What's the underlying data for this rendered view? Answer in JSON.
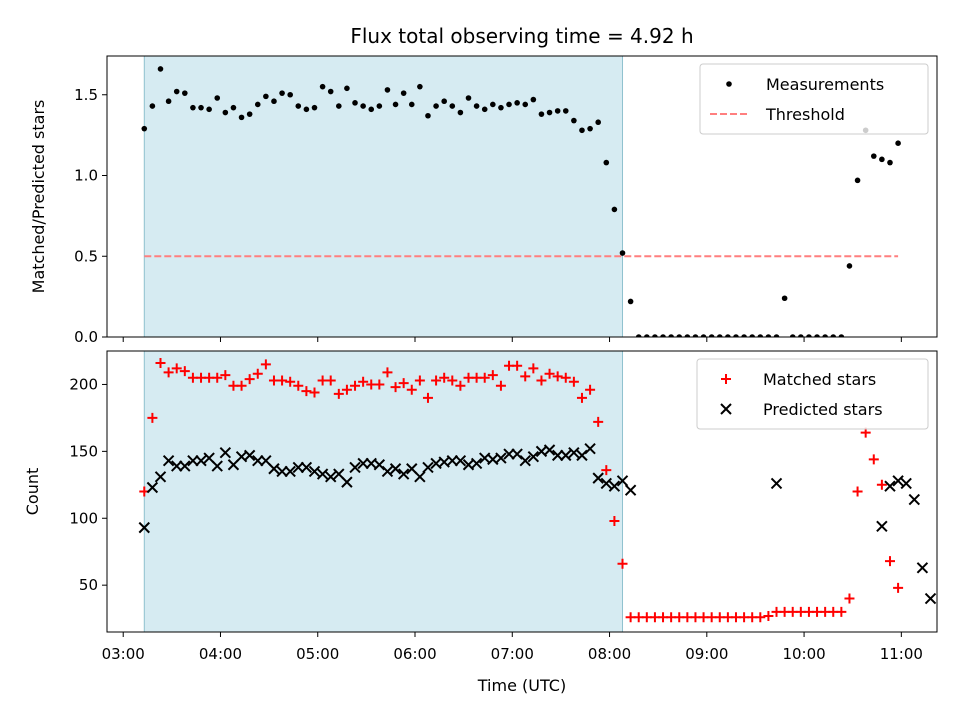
{
  "figure": {
    "title": "Flux total observing time = 4.92 h",
    "xlabel": "Time (UTC)"
  },
  "chart_data": [
    {
      "type": "scatter",
      "title": "Flux total observing time = 4.92 h",
      "xlabel": "",
      "ylabel": "Matched/Predicted stars",
      "xlim": [
        "02:50",
        "11:22"
      ],
      "ylim": [
        0,
        1.74
      ],
      "shaded_region": [
        "03:13",
        "08:08"
      ],
      "yticks": [
        "0.0",
        "0.5",
        "1.0",
        "1.5"
      ],
      "legend": [
        "Measurements",
        "Threshold"
      ],
      "legend_position": "top-right",
      "grid": false,
      "threshold": {
        "name": "Threshold",
        "y": 0.5,
        "x": [
          "03:13",
          "10:58"
        ],
        "color": "#ff7f7f",
        "style": "dashed"
      },
      "series": [
        {
          "name": "Measurements",
          "marker": "dot",
          "color": "#000000",
          "x": [
            "03:13",
            "03:18",
            "03:23",
            "03:28",
            "03:33",
            "03:38",
            "03:43",
            "03:48",
            "03:53",
            "03:58",
            "04:03",
            "04:08",
            "04:13",
            "04:18",
            "04:23",
            "04:28",
            "04:33",
            "04:38",
            "04:43",
            "04:48",
            "04:53",
            "04:58",
            "05:03",
            "05:08",
            "05:13",
            "05:18",
            "05:23",
            "05:28",
            "05:33",
            "05:38",
            "05:43",
            "05:48",
            "05:53",
            "05:58",
            "06:03",
            "06:08",
            "06:13",
            "06:18",
            "06:23",
            "06:28",
            "06:33",
            "06:38",
            "06:43",
            "06:48",
            "06:53",
            "06:58",
            "07:03",
            "07:08",
            "07:13",
            "07:18",
            "07:23",
            "07:28",
            "07:33",
            "07:38",
            "07:43",
            "07:48",
            "07:53",
            "07:58",
            "08:03",
            "08:08",
            "08:13",
            "08:18",
            "08:23",
            "08:28",
            "08:33",
            "08:38",
            "08:43",
            "08:48",
            "08:53",
            "08:58",
            "09:03",
            "09:08",
            "09:13",
            "09:18",
            "09:23",
            "09:28",
            "09:33",
            "09:38",
            "09:43",
            "09:48",
            "09:53",
            "09:58",
            "10:03",
            "10:08",
            "10:13",
            "10:18",
            "10:23",
            "10:28",
            "10:33",
            "10:38",
            "10:43",
            "10:48",
            "10:53",
            "10:58"
          ],
          "y": [
            1.29,
            1.43,
            1.66,
            1.46,
            1.52,
            1.51,
            1.42,
            1.42,
            1.41,
            1.48,
            1.39,
            1.42,
            1.36,
            1.38,
            1.44,
            1.49,
            1.46,
            1.51,
            1.5,
            1.43,
            1.41,
            1.42,
            1.55,
            1.52,
            1.43,
            1.54,
            1.45,
            1.43,
            1.41,
            1.43,
            1.53,
            1.44,
            1.51,
            1.44,
            1.55,
            1.37,
            1.43,
            1.46,
            1.43,
            1.39,
            1.48,
            1.43,
            1.41,
            1.44,
            1.42,
            1.44,
            1.45,
            1.44,
            1.47,
            1.38,
            1.39,
            1.4,
            1.4,
            1.34,
            1.28,
            1.29,
            1.33,
            1.08,
            0.79,
            0.52,
            0.22,
            0,
            0,
            0,
            0,
            0,
            0,
            0,
            0,
            0,
            0,
            0,
            0,
            0,
            0,
            0,
            0,
            0,
            0,
            0.24,
            0,
            0,
            0,
            0,
            0,
            0,
            0,
            0.44,
            0.97,
            1.28,
            1.12,
            1.1,
            1.08,
            1.2
          ]
        }
      ]
    },
    {
      "type": "scatter",
      "title": "",
      "xlabel": "Time (UTC)",
      "ylabel": "Count",
      "xlim": [
        "02:50",
        "11:22"
      ],
      "ylim": [
        15,
        225
      ],
      "shaded_region": [
        "03:13",
        "08:08"
      ],
      "xticks": [
        "03:00",
        "04:00",
        "05:00",
        "06:00",
        "07:00",
        "08:00",
        "09:00",
        "10:00",
        "11:00"
      ],
      "yticks": [
        "50",
        "100",
        "150",
        "200"
      ],
      "legend": [
        "Matched stars",
        "Predicted stars"
      ],
      "legend_position": "top-right",
      "grid": false,
      "series": [
        {
          "name": "Matched stars",
          "marker": "plus",
          "color": "#ff0000",
          "x": [
            "03:13",
            "03:18",
            "03:23",
            "03:28",
            "03:33",
            "03:38",
            "03:43",
            "03:48",
            "03:53",
            "03:58",
            "04:03",
            "04:08",
            "04:13",
            "04:18",
            "04:23",
            "04:28",
            "04:33",
            "04:38",
            "04:43",
            "04:48",
            "04:53",
            "04:58",
            "05:03",
            "05:08",
            "05:13",
            "05:18",
            "05:23",
            "05:28",
            "05:33",
            "05:38",
            "05:43",
            "05:48",
            "05:53",
            "05:58",
            "06:03",
            "06:08",
            "06:13",
            "06:18",
            "06:23",
            "06:28",
            "06:33",
            "06:38",
            "06:43",
            "06:48",
            "06:53",
            "06:58",
            "07:03",
            "07:08",
            "07:13",
            "07:18",
            "07:23",
            "07:28",
            "07:33",
            "07:38",
            "07:43",
            "07:48",
            "07:53",
            "07:58",
            "08:03",
            "08:08",
            "08:13",
            "08:18",
            "08:23",
            "08:28",
            "08:33",
            "08:38",
            "08:43",
            "08:48",
            "08:53",
            "08:58",
            "09:03",
            "09:08",
            "09:13",
            "09:18",
            "09:23",
            "09:28",
            "09:33",
            "09:38",
            "09:43",
            "09:48",
            "09:53",
            "09:58",
            "10:03",
            "10:08",
            "10:13",
            "10:18",
            "10:23",
            "10:28",
            "10:33",
            "10:38",
            "10:43",
            "10:48",
            "10:53",
            "10:58"
          ],
          "y": [
            120,
            175,
            216,
            209,
            212,
            210,
            205,
            205,
            205,
            205,
            207,
            199,
            199,
            204,
            208,
            215,
            203,
            203,
            202,
            199,
            195,
            194,
            203,
            203,
            193,
            196,
            199,
            202,
            200,
            200,
            209,
            198,
            201,
            196,
            203,
            190,
            203,
            205,
            203,
            199,
            205,
            205,
            205,
            207,
            199,
            214,
            214,
            206,
            212,
            203,
            208,
            206,
            205,
            202,
            190,
            196,
            172,
            136,
            98,
            66,
            26,
            26,
            26,
            26,
            26,
            26,
            26,
            26,
            26,
            26,
            26,
            26,
            26,
            26,
            26,
            26,
            26,
            27,
            30,
            30,
            30,
            30,
            30,
            30,
            30,
            30,
            30,
            40,
            120,
            164,
            144,
            125,
            68,
            48
          ]
        },
        {
          "name": "Predicted stars",
          "marker": "x",
          "color": "#000000",
          "x": [
            "03:13",
            "03:18",
            "03:23",
            "03:28",
            "03:33",
            "03:38",
            "03:43",
            "03:48",
            "03:53",
            "03:58",
            "04:03",
            "04:08",
            "04:13",
            "04:18",
            "04:23",
            "04:28",
            "04:33",
            "04:38",
            "04:43",
            "04:48",
            "04:53",
            "04:58",
            "05:03",
            "05:08",
            "05:13",
            "05:18",
            "05:23",
            "05:28",
            "05:33",
            "05:38",
            "05:43",
            "05:48",
            "05:53",
            "05:58",
            "06:03",
            "06:08",
            "06:13",
            "06:18",
            "06:23",
            "06:28",
            "06:33",
            "06:38",
            "06:43",
            "06:48",
            "06:53",
            "06:58",
            "07:03",
            "07:08",
            "07:13",
            "07:18",
            "07:23",
            "07:28",
            "07:33",
            "07:38",
            "07:43",
            "07:48",
            "07:53",
            "07:58",
            "08:03",
            "08:08",
            "08:13",
            "09:43",
            "10:48",
            "10:53",
            "10:58",
            "11:03",
            "11:08",
            "11:13",
            "11:18"
          ],
          "y": [
            93,
            123,
            131,
            143,
            139,
            139,
            143,
            143,
            145,
            139,
            149,
            140,
            146,
            147,
            143,
            143,
            137,
            135,
            135,
            138,
            138,
            135,
            133,
            131,
            133,
            127,
            138,
            141,
            141,
            140,
            135,
            137,
            133,
            137,
            131,
            138,
            141,
            142,
            143,
            143,
            140,
            141,
            145,
            144,
            145,
            148,
            148,
            143,
            146,
            150,
            151,
            147,
            147,
            149,
            147,
            152,
            130,
            126,
            124,
            128,
            121,
            126,
            94,
            124,
            128,
            126,
            114,
            63,
            40
          ]
        }
      ]
    }
  ]
}
